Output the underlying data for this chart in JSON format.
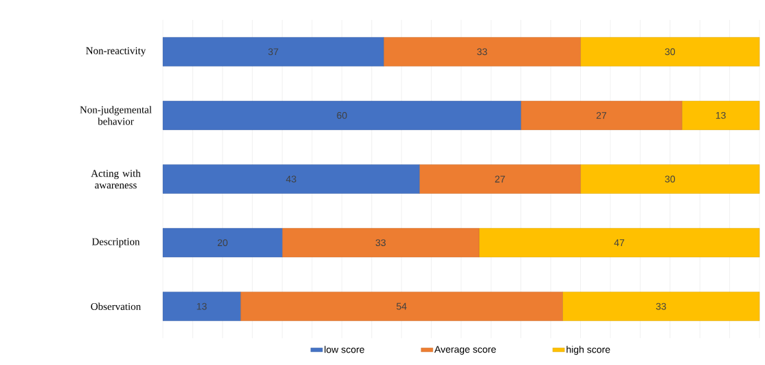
{
  "chart_data": {
    "type": "bar",
    "orientation": "horizontal",
    "stacked": true,
    "categories": [
      "Non-reactivity",
      "Non-judgemental behavior",
      "Acting with awareness",
      "Description",
      "Observation"
    ],
    "series": [
      {
        "name": "low score",
        "color": "#4472c4",
        "values": [
          37,
          60,
          43,
          20,
          13
        ]
      },
      {
        "name": "Average score",
        "color": "#ed7d31",
        "values": [
          33,
          27,
          27,
          33,
          54
        ]
      },
      {
        "name": "high score",
        "color": "#ffc000",
        "values": [
          30,
          13,
          30,
          47,
          33
        ]
      }
    ],
    "tick_labels": "y",
    "grid": "x",
    "legend": "bottom",
    "data_labels": true
  }
}
